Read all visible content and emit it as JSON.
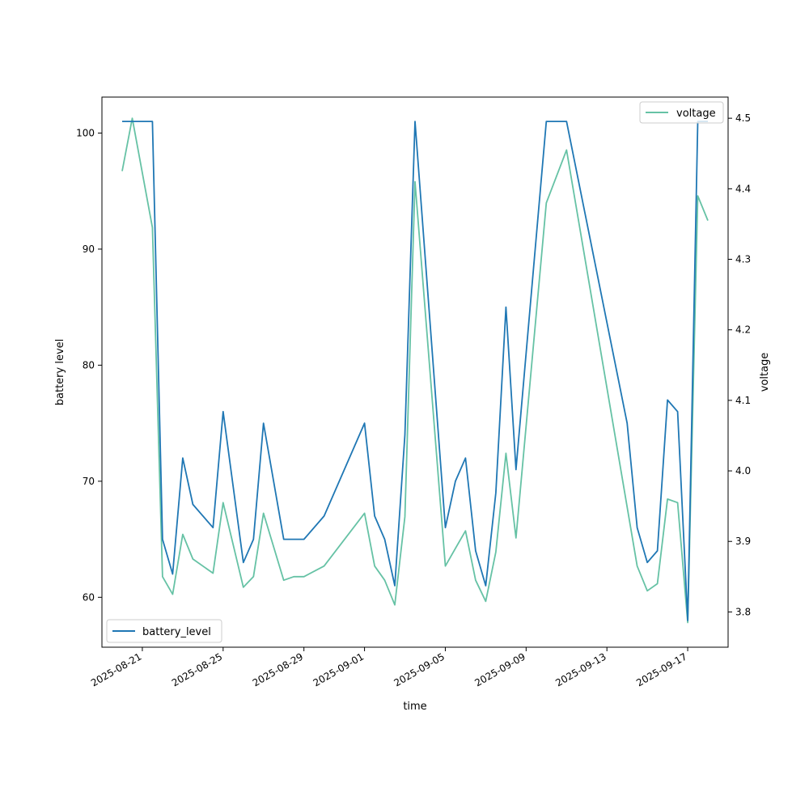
{
  "chart_data": {
    "type": "line",
    "title": "",
    "xlabel": "time",
    "ylabel": "battery level",
    "y2label": "voltage",
    "xlim": [
      "2025-08-19",
      "2025-09-19"
    ],
    "ylim": [
      55.7,
      103.1
    ],
    "y2lim": [
      3.75,
      4.53
    ],
    "x_ticks": [
      "2025-08-21",
      "2025-08-25",
      "2025-08-29",
      "2025-09-01",
      "2025-09-05",
      "2025-09-09",
      "2025-09-13",
      "2025-09-17"
    ],
    "y_ticks": [
      60,
      70,
      80,
      90,
      100
    ],
    "y2_ticks": [
      "3.8",
      "3.9",
      "4.0",
      "4.1",
      "4.2",
      "4.3",
      "4.4",
      "4.5"
    ],
    "series": [
      {
        "name": "battery_level",
        "axis": "left",
        "color": "#1f77b4",
        "legend_position": "lower-left",
        "points": [
          [
            "2025-08-20T00:00",
            101
          ],
          [
            "2025-08-21T12:00",
            101
          ],
          [
            "2025-08-22T00:00",
            65
          ],
          [
            "2025-08-22T12:00",
            62
          ],
          [
            "2025-08-23T00:00",
            72
          ],
          [
            "2025-08-23T12:00",
            68
          ],
          [
            "2025-08-24T12:00",
            66
          ],
          [
            "2025-08-25T00:00",
            76
          ],
          [
            "2025-08-26T00:00",
            63
          ],
          [
            "2025-08-26T12:00",
            65
          ],
          [
            "2025-08-27T00:00",
            75
          ],
          [
            "2025-08-28T00:00",
            65
          ],
          [
            "2025-08-29T00:00",
            65
          ],
          [
            "2025-08-30T00:00",
            67
          ],
          [
            "2025-09-01T00:00",
            75
          ],
          [
            "2025-09-01T12:00",
            67
          ],
          [
            "2025-09-02T00:00",
            65
          ],
          [
            "2025-09-02T12:00",
            61
          ],
          [
            "2025-09-03T00:00",
            74
          ],
          [
            "2025-09-03T12:00",
            101
          ],
          [
            "2025-09-05T00:00",
            66
          ],
          [
            "2025-09-05T12:00",
            70
          ],
          [
            "2025-09-06T00:00",
            72
          ],
          [
            "2025-09-06T12:00",
            64
          ],
          [
            "2025-09-07T00:00",
            61
          ],
          [
            "2025-09-07T12:00",
            69
          ],
          [
            "2025-09-08T00:00",
            85
          ],
          [
            "2025-09-08T12:00",
            71
          ],
          [
            "2025-09-10T00:00",
            101
          ],
          [
            "2025-09-11T00:00",
            101
          ],
          [
            "2025-09-14T00:00",
            75
          ],
          [
            "2025-09-14T12:00",
            66
          ],
          [
            "2025-09-15T00:00",
            63
          ],
          [
            "2025-09-15T12:00",
            64
          ],
          [
            "2025-09-16T00:00",
            77
          ],
          [
            "2025-09-16T12:00",
            76
          ],
          [
            "2025-09-17T00:00",
            58
          ],
          [
            "2025-09-17T12:00",
            101
          ],
          [
            "2025-09-18T00:00",
            101
          ]
        ]
      },
      {
        "name": "voltage",
        "axis": "right",
        "color": "#66c2a5",
        "legend_position": "upper-right",
        "points": [
          [
            "2025-08-20T00:00",
            4.425
          ],
          [
            "2025-08-20T12:00",
            4.5
          ],
          [
            "2025-08-21T12:00",
            4.345
          ],
          [
            "2025-08-22T00:00",
            3.85
          ],
          [
            "2025-08-22T12:00",
            3.825
          ],
          [
            "2025-08-23T00:00",
            3.91
          ],
          [
            "2025-08-23T12:00",
            3.875
          ],
          [
            "2025-08-24T12:00",
            3.855
          ],
          [
            "2025-08-25T00:00",
            3.955
          ],
          [
            "2025-08-26T00:00",
            3.835
          ],
          [
            "2025-08-26T12:00",
            3.85
          ],
          [
            "2025-08-27T00:00",
            3.94
          ],
          [
            "2025-08-28T00:00",
            3.845
          ],
          [
            "2025-08-28T12:00",
            3.85
          ],
          [
            "2025-08-29T00:00",
            3.85
          ],
          [
            "2025-08-30T00:00",
            3.865
          ],
          [
            "2025-09-01T00:00",
            3.94
          ],
          [
            "2025-09-01T12:00",
            3.865
          ],
          [
            "2025-09-02T00:00",
            3.845
          ],
          [
            "2025-09-02T12:00",
            3.81
          ],
          [
            "2025-09-03T00:00",
            3.935
          ],
          [
            "2025-09-03T12:00",
            4.41
          ],
          [
            "2025-09-05T00:00",
            3.865
          ],
          [
            "2025-09-05T12:00",
            3.89
          ],
          [
            "2025-09-06T00:00",
            3.915
          ],
          [
            "2025-09-06T12:00",
            3.845
          ],
          [
            "2025-09-07T00:00",
            3.815
          ],
          [
            "2025-09-07T12:00",
            3.885
          ],
          [
            "2025-09-08T00:00",
            4.025
          ],
          [
            "2025-09-08T12:00",
            3.905
          ],
          [
            "2025-09-10T00:00",
            4.38
          ],
          [
            "2025-09-11T00:00",
            4.455
          ],
          [
            "2025-09-14T12:00",
            3.865
          ],
          [
            "2025-09-15T00:00",
            3.83
          ],
          [
            "2025-09-15T12:00",
            3.84
          ],
          [
            "2025-09-16T00:00",
            3.96
          ],
          [
            "2025-09-16T12:00",
            3.955
          ],
          [
            "2025-09-17T00:00",
            3.785
          ],
          [
            "2025-09-17T12:00",
            4.39
          ],
          [
            "2025-09-18T00:00",
            4.355
          ]
        ]
      }
    ],
    "grid": false
  }
}
